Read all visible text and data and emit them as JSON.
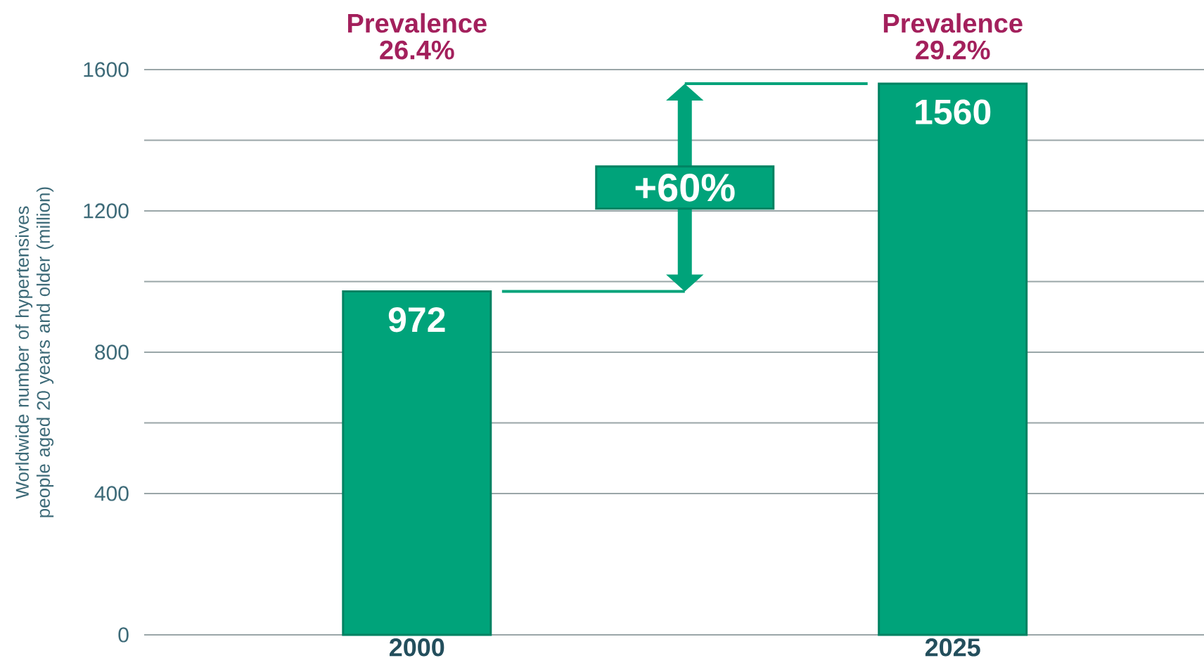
{
  "chart_data": {
    "type": "bar",
    "categories": [
      "2000",
      "2025"
    ],
    "values": [
      972,
      1560
    ],
    "color": "#00a37a",
    "ylabel": "Worldwide number of hypertensives people aged 20 years and older (million)",
    "ylim": [
      0,
      1600
    ],
    "yticks": [
      0,
      400,
      {
        "value": 600,
        "label": null
      },
      800,
      {
        "value": 1000,
        "label": null
      },
      1200,
      {
        "value": 1400,
        "label": null
      },
      1600
    ],
    "grid": "y",
    "data_labels": true,
    "annotations": [
      "Prevalence 26.4%",
      "Prevalence 29.2%",
      "+60%"
    ]
  }
}
